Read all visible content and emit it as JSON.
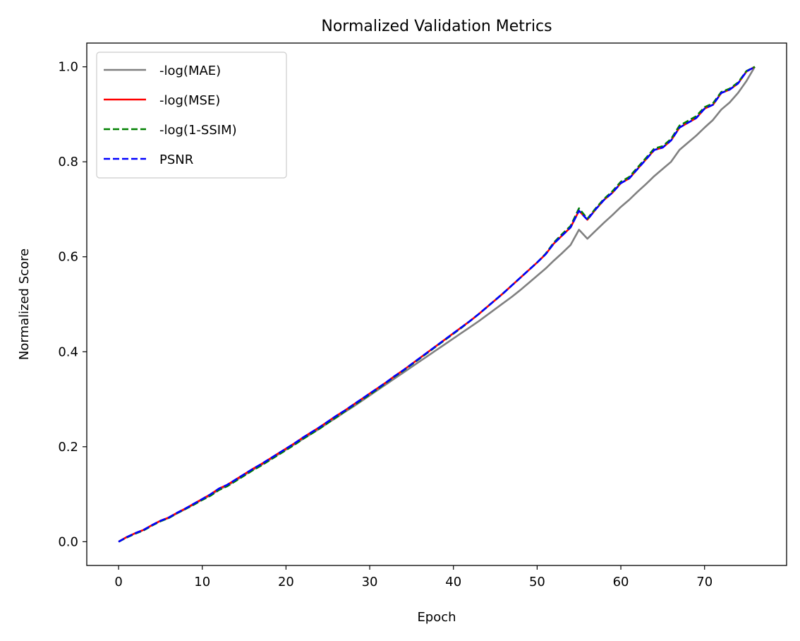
{
  "chart_data": {
    "type": "line",
    "title": "Normalized Validation Metrics",
    "xlabel": "Epoch",
    "ylabel": "Normalized Score",
    "xlim": [
      -3.8,
      79.8
    ],
    "ylim": [
      -0.05,
      1.05
    ],
    "xticks": [
      0,
      10,
      20,
      30,
      40,
      50,
      60,
      70
    ],
    "xtick_labels": [
      "0",
      "10",
      "20",
      "30",
      "40",
      "50",
      "60",
      "70"
    ],
    "yticks": [
      0.0,
      0.2,
      0.4,
      0.6,
      0.8,
      1.0
    ],
    "ytick_labels": [
      "0.0",
      "0.2",
      "0.4",
      "0.6",
      "0.8",
      "1.0"
    ],
    "grid": false,
    "legend_position": "top-left",
    "x": [
      0,
      1,
      2,
      3,
      4,
      5,
      6,
      7,
      8,
      9,
      10,
      11,
      12,
      13,
      14,
      15,
      16,
      17,
      18,
      19,
      20,
      21,
      22,
      23,
      24,
      25,
      26,
      27,
      28,
      29,
      30,
      31,
      32,
      33,
      34,
      35,
      36,
      37,
      38,
      39,
      40,
      41,
      42,
      43,
      44,
      45,
      46,
      47,
      48,
      49,
      50,
      51,
      52,
      53,
      54,
      55,
      56,
      57,
      58,
      59,
      60,
      61,
      62,
      63,
      64,
      65,
      66,
      67,
      68,
      69,
      70,
      71,
      72,
      73,
      74,
      75,
      76
    ],
    "series": [
      {
        "name": "-log(MAE)",
        "color": "#808080",
        "dash": "solid",
        "values": [
          0.0,
          0.01,
          0.018,
          0.025,
          0.035,
          0.044,
          0.05,
          0.06,
          0.069,
          0.079,
          0.089,
          0.098,
          0.11,
          0.118,
          0.129,
          0.14,
          0.151,
          0.161,
          0.172,
          0.183,
          0.194,
          0.205,
          0.216,
          0.227,
          0.238,
          0.25,
          0.261,
          0.273,
          0.284,
          0.296,
          0.308,
          0.32,
          0.332,
          0.344,
          0.356,
          0.368,
          0.38,
          0.392,
          0.404,
          0.416,
          0.428,
          0.44,
          0.452,
          0.464,
          0.477,
          0.49,
          0.503,
          0.516,
          0.53,
          0.545,
          0.56,
          0.575,
          0.592,
          0.608,
          0.625,
          0.657,
          0.638,
          0.655,
          0.672,
          0.688,
          0.705,
          0.72,
          0.737,
          0.753,
          0.77,
          0.785,
          0.8,
          0.825,
          0.84,
          0.855,
          0.872,
          0.888,
          0.91,
          0.925,
          0.945,
          0.97,
          1.0
        ]
      },
      {
        "name": "-log(MSE)",
        "color": "#ff0000",
        "dash": "solid",
        "values": [
          0.0,
          0.01,
          0.018,
          0.025,
          0.035,
          0.044,
          0.051,
          0.061,
          0.07,
          0.08,
          0.09,
          0.1,
          0.112,
          0.12,
          0.131,
          0.142,
          0.153,
          0.163,
          0.174,
          0.185,
          0.196,
          0.207,
          0.219,
          0.23,
          0.241,
          0.253,
          0.265,
          0.276,
          0.288,
          0.3,
          0.312,
          0.324,
          0.336,
          0.349,
          0.361,
          0.374,
          0.387,
          0.4,
          0.413,
          0.426,
          0.439,
          0.452,
          0.465,
          0.479,
          0.494,
          0.509,
          0.524,
          0.54,
          0.556,
          0.572,
          0.588,
          0.605,
          0.628,
          0.645,
          0.662,
          0.697,
          0.678,
          0.7,
          0.72,
          0.735,
          0.755,
          0.765,
          0.785,
          0.805,
          0.825,
          0.83,
          0.845,
          0.872,
          0.882,
          0.892,
          0.912,
          0.92,
          0.945,
          0.952,
          0.965,
          0.99,
          1.0
        ]
      },
      {
        "name": "-log(1-SSIM)",
        "color": "#008000",
        "dash": "dashed",
        "values": [
          0.0,
          0.009,
          0.017,
          0.024,
          0.034,
          0.043,
          0.05,
          0.06,
          0.069,
          0.078,
          0.088,
          0.097,
          0.109,
          0.117,
          0.128,
          0.139,
          0.15,
          0.16,
          0.171,
          0.182,
          0.193,
          0.204,
          0.216,
          0.227,
          0.238,
          0.25,
          0.262,
          0.274,
          0.286,
          0.298,
          0.31,
          0.322,
          0.335,
          0.348,
          0.36,
          0.373,
          0.386,
          0.399,
          0.412,
          0.425,
          0.438,
          0.451,
          0.465,
          0.479,
          0.494,
          0.509,
          0.524,
          0.54,
          0.556,
          0.572,
          0.588,
          0.606,
          0.63,
          0.648,
          0.665,
          0.702,
          0.68,
          0.702,
          0.722,
          0.738,
          0.758,
          0.768,
          0.788,
          0.808,
          0.828,
          0.833,
          0.848,
          0.876,
          0.886,
          0.896,
          0.915,
          0.923,
          0.947,
          0.954,
          0.967,
          0.991,
          1.0
        ]
      },
      {
        "name": "PSNR",
        "color": "#0000ff",
        "dash": "dashed",
        "values": [
          0.0,
          0.01,
          0.018,
          0.025,
          0.035,
          0.044,
          0.051,
          0.061,
          0.07,
          0.08,
          0.09,
          0.1,
          0.112,
          0.12,
          0.131,
          0.142,
          0.153,
          0.163,
          0.174,
          0.185,
          0.196,
          0.207,
          0.219,
          0.23,
          0.241,
          0.253,
          0.265,
          0.276,
          0.288,
          0.3,
          0.312,
          0.324,
          0.336,
          0.349,
          0.361,
          0.374,
          0.387,
          0.4,
          0.413,
          0.426,
          0.439,
          0.452,
          0.465,
          0.479,
          0.494,
          0.509,
          0.524,
          0.54,
          0.556,
          0.572,
          0.588,
          0.605,
          0.628,
          0.645,
          0.662,
          0.697,
          0.678,
          0.7,
          0.72,
          0.735,
          0.755,
          0.765,
          0.785,
          0.805,
          0.825,
          0.83,
          0.845,
          0.872,
          0.882,
          0.892,
          0.912,
          0.92,
          0.945,
          0.952,
          0.965,
          0.99,
          1.0
        ]
      }
    ]
  }
}
